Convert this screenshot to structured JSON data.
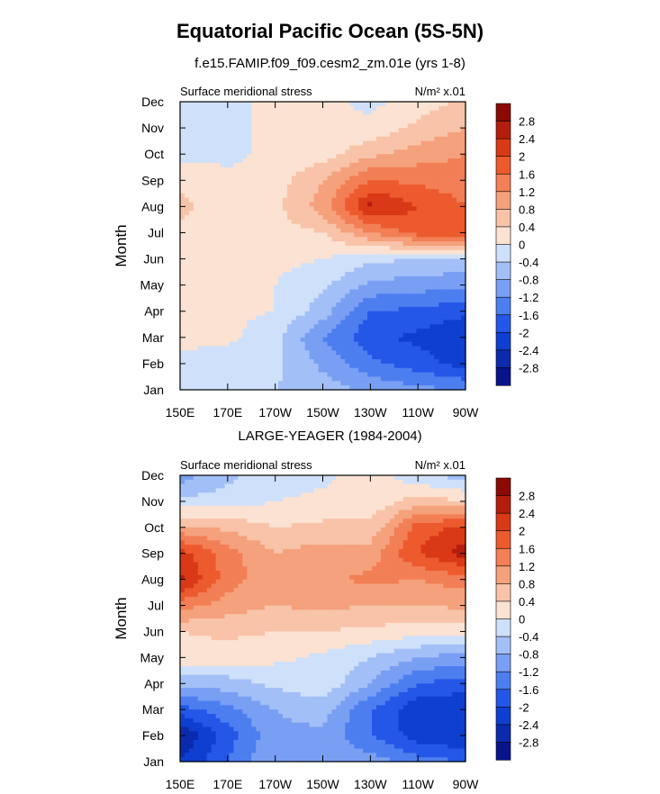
{
  "title": "Equatorial Pacific Ocean (5S-5N)",
  "subtitle": "f.e15.FAMIP.f09_f09.cesm2_zm.01e (yrs 1-8)",
  "colors": [
    "#08148c",
    "#0b2aad",
    "#0f3fd0",
    "#2456e8",
    "#4d7ef0",
    "#799ff3",
    "#a3bff7",
    "#cfe0fa",
    "#fbe2d2",
    "#f8c3a8",
    "#f5a17c",
    "#f27f55",
    "#ec5a2e",
    "#d93916",
    "#b41d0c",
    "#8c0a05"
  ],
  "chart_data": [
    {
      "type": "heatmap",
      "panel_title": "",
      "left_label": "Surface meridional stress",
      "right_label": "N/m² x.01",
      "ylabel": "Month",
      "xlabel": "",
      "x_ticks": [
        "150E",
        "170E",
        "170W",
        "150W",
        "130W",
        "110W",
        "90W"
      ],
      "x_range_deg": [
        150,
        270
      ],
      "y_ticks": [
        "Jan",
        "Feb",
        "Mar",
        "Apr",
        "May",
        "Jun",
        "Jul",
        "Aug",
        "Sep",
        "Oct",
        "Nov",
        "Dec"
      ],
      "colorbar_labels": [
        "2.8",
        "2.4",
        "2",
        "1.6",
        "1.2",
        "0.8",
        "0.4",
        "0",
        "-0.4",
        "-0.8",
        "-1.2",
        "-1.6",
        "-2",
        "-2.4",
        "-2.8"
      ],
      "x": [
        150,
        170,
        190,
        210,
        230,
        250,
        270
      ],
      "y": [
        "Jan",
        "Feb",
        "Mar",
        "Apr",
        "May",
        "Jun",
        "Jul",
        "Aug",
        "Sep",
        "Oct",
        "Nov",
        "Dec"
      ],
      "values": [
        [
          -0.2,
          -0.3,
          -0.4,
          -0.6,
          -0.9,
          -1.1,
          -1.2
        ],
        [
          -0.1,
          -0.2,
          -0.3,
          -0.9,
          -1.5,
          -1.8,
          -2.2
        ],
        [
          0.1,
          0.1,
          -0.3,
          -1.2,
          -1.9,
          -2.1,
          -2.4
        ],
        [
          0.1,
          0.1,
          0.0,
          -0.6,
          -1.6,
          -1.7,
          -1.9
        ],
        [
          0.1,
          0.1,
          0.0,
          -0.3,
          -0.9,
          -1.0,
          -1.1
        ],
        [
          0.2,
          0.1,
          0.1,
          0.0,
          -0.3,
          -0.4,
          -0.5
        ],
        [
          0.3,
          0.1,
          0.2,
          0.4,
          1.2,
          1.8,
          1.9
        ],
        [
          0.5,
          0.2,
          0.3,
          1.0,
          2.5,
          2.0,
          1.6
        ],
        [
          0.3,
          0.1,
          0.2,
          0.8,
          1.6,
          1.5,
          1.4
        ],
        [
          -0.1,
          -0.1,
          0.1,
          0.2,
          0.7,
          1.0,
          1.2
        ],
        [
          -0.2,
          -0.1,
          0.1,
          0.1,
          0.1,
          0.5,
          0.8
        ],
        [
          -0.2,
          -0.1,
          0.1,
          0.1,
          -0.1,
          0.2,
          0.5
        ]
      ]
    },
    {
      "type": "heatmap",
      "panel_title": "LARGE-YEAGER (1984-2004)",
      "left_label": "Surface meridional stress",
      "right_label": "N/m² x.01",
      "ylabel": "Month",
      "xlabel": "",
      "x_ticks": [
        "150E",
        "170E",
        "170W",
        "150W",
        "130W",
        "110W",
        "90W"
      ],
      "x_range_deg": [
        150,
        270
      ],
      "y_ticks": [
        "Jan",
        "Feb",
        "Mar",
        "Apr",
        "May",
        "Jun",
        "Jul",
        "Aug",
        "Sep",
        "Oct",
        "Nov",
        "Dec"
      ],
      "colorbar_labels": [
        "2.8",
        "2.4",
        "2",
        "1.6",
        "1.2",
        "0.8",
        "0.4",
        "0",
        "-0.4",
        "-0.8",
        "-1.2",
        "-1.6",
        "-2",
        "-2.4",
        "-2.8"
      ],
      "x": [
        150,
        170,
        190,
        210,
        230,
        250,
        270
      ],
      "y": [
        "Jan",
        "Feb",
        "Mar",
        "Apr",
        "May",
        "Jun",
        "Jul",
        "Aug",
        "Sep",
        "Oct",
        "Nov",
        "Dec"
      ],
      "values": [
        [
          -2.4,
          -1.6,
          -0.8,
          -0.8,
          -1.0,
          -1.4,
          -1.6
        ],
        [
          -2.8,
          -1.8,
          -0.9,
          -0.9,
          -1.6,
          -2.2,
          -2.4
        ],
        [
          -1.8,
          -1.3,
          -0.8,
          -0.6,
          -1.6,
          -2.3,
          -2.4
        ],
        [
          -0.6,
          -0.6,
          -0.3,
          -0.1,
          -0.8,
          -1.6,
          -1.8
        ],
        [
          0.2,
          0.2,
          0.1,
          -0.1,
          -0.4,
          -0.8,
          -1.0
        ],
        [
          0.4,
          0.5,
          0.4,
          0.4,
          0.3,
          0.2,
          0.1
        ],
        [
          1.4,
          1.0,
          0.8,
          0.9,
          0.8,
          0.8,
          0.9
        ],
        [
          2.5,
          1.4,
          0.9,
          1.1,
          1.3,
          1.2,
          1.4
        ],
        [
          2.2,
          1.4,
          0.8,
          1.0,
          1.0,
          2.0,
          2.6
        ],
        [
          0.9,
          0.7,
          0.4,
          0.5,
          0.5,
          1.8,
          2.1
        ],
        [
          -0.3,
          -0.2,
          0.0,
          0.1,
          0.1,
          0.6,
          0.4
        ],
        [
          -1.0,
          -0.5,
          -0.2,
          -0.1,
          0.2,
          -0.3,
          -0.6
        ]
      ]
    }
  ]
}
